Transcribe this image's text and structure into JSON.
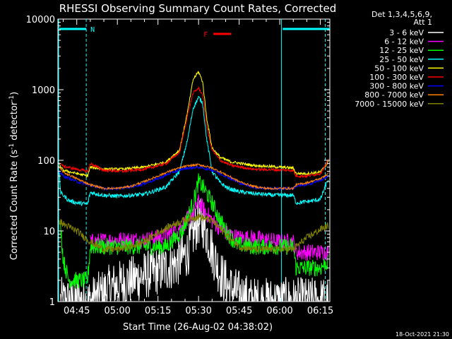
{
  "chart_data": {
    "type": "line",
    "title": "RHESSI Observing Summary Count Rates, Corrected",
    "xlabel": "Start Time (26-Aug-02 04:38:02)",
    "ylabel_main": "Corrected Count Rate (s",
    "ylabel_sup1": "-1",
    "ylabel_mid": " detector",
    "ylabel_sup2": "-1",
    "ylabel_end": ")",
    "y_scale": "log",
    "ylim": [
      1,
      10000
    ],
    "xlim_minutes": [
      38.03,
      138.5
    ],
    "xticks": [
      {
        "label": "04:45",
        "min": 45
      },
      {
        "label": "05:00",
        "min": 60
      },
      {
        "label": "05:15",
        "min": 75
      },
      {
        "label": "05:30",
        "min": 90
      },
      {
        "label": "05:45",
        "min": 105
      },
      {
        "label": "06:00",
        "min": 120
      },
      {
        "label": "06:15",
        "min": 135
      }
    ],
    "yticks": [
      {
        "label": "1",
        "v": 1
      },
      {
        "label": "10",
        "v": 10
      },
      {
        "label": "100",
        "v": 100
      },
      {
        "label": "1000",
        "v": 1000
      },
      {
        "label": "10000",
        "v": 10000
      }
    ],
    "legend_header": [
      "Det 1,3,4,5,6,9,",
      "Att 1"
    ],
    "legend_position": "top-right",
    "series": [
      {
        "name": "3 - 6 keV",
        "color": "#ffffff",
        "points": [
          [
            39,
            1
          ],
          [
            50,
            1
          ],
          [
            58,
            1.6
          ],
          [
            65,
            2
          ],
          [
            72,
            2.5
          ],
          [
            78,
            3
          ],
          [
            82,
            3.5
          ],
          [
            86,
            5
          ],
          [
            88,
            9
          ],
          [
            90,
            14
          ],
          [
            92,
            12
          ],
          [
            94,
            7
          ],
          [
            96,
            4
          ],
          [
            98,
            2.5
          ],
          [
            101,
            1.6
          ],
          [
            106,
            1.2
          ],
          [
            110,
            1
          ],
          [
            138,
            1
          ]
        ]
      },
      {
        "name": "6 - 12 keV",
        "color": "#ff00ff",
        "points": [
          [
            50,
            7
          ],
          [
            60,
            7.5
          ],
          [
            70,
            7.5
          ],
          [
            78,
            8.5
          ],
          [
            84,
            12
          ],
          [
            88,
            18
          ],
          [
            90,
            26
          ],
          [
            92,
            20
          ],
          [
            95,
            14
          ],
          [
            98,
            11
          ],
          [
            101,
            9
          ],
          [
            105,
            8
          ],
          [
            110,
            8
          ],
          [
            120,
            7
          ],
          [
            125,
            7
          ],
          [
            126,
            5
          ],
          [
            130,
            5
          ],
          [
            135,
            5
          ],
          [
            138,
            5
          ]
        ]
      },
      {
        "name": "12 - 25 keV",
        "color": "#00ff00",
        "points": [
          [
            39,
            12
          ],
          [
            40,
            4
          ],
          [
            42,
            2
          ],
          [
            49,
            2
          ],
          [
            50,
            6
          ],
          [
            56,
            6
          ],
          [
            60,
            6
          ],
          [
            70,
            6
          ],
          [
            78,
            6
          ],
          [
            84,
            10
          ],
          [
            88,
            25
          ],
          [
            90,
            50
          ],
          [
            92,
            40
          ],
          [
            95,
            25
          ],
          [
            98,
            14
          ],
          [
            101,
            9
          ],
          [
            104,
            6.5
          ],
          [
            110,
            6
          ],
          [
            125,
            6
          ],
          [
            126,
            3
          ],
          [
            135,
            3
          ],
          [
            137,
            3.5
          ],
          [
            138,
            3.5
          ]
        ]
      },
      {
        "name": "25 - 50 keV",
        "color": "#00ffff",
        "points": [
          [
            38.5,
            70
          ],
          [
            39,
            35
          ],
          [
            42,
            27
          ],
          [
            45,
            25
          ],
          [
            49,
            24
          ],
          [
            50,
            35
          ],
          [
            55,
            32
          ],
          [
            60,
            31
          ],
          [
            70,
            33
          ],
          [
            78,
            42
          ],
          [
            83,
            70
          ],
          [
            86,
            200
          ],
          [
            88,
            550
          ],
          [
            90,
            780
          ],
          [
            91.5,
            650
          ],
          [
            93,
            200
          ],
          [
            95,
            70
          ],
          [
            98,
            48
          ],
          [
            101,
            40
          ],
          [
            105,
            36
          ],
          [
            110,
            34
          ],
          [
            118,
            32
          ],
          [
            125,
            32
          ],
          [
            126,
            25
          ],
          [
            130,
            26
          ],
          [
            135,
            28
          ],
          [
            138,
            55
          ]
        ]
      },
      {
        "name": "50 - 100 keV",
        "color": "#ffff00",
        "points": [
          [
            38.5,
            85
          ],
          [
            40,
            72
          ],
          [
            45,
            65
          ],
          [
            49,
            60
          ],
          [
            50,
            80
          ],
          [
            55,
            75
          ],
          [
            62,
            75
          ],
          [
            70,
            80
          ],
          [
            78,
            95
          ],
          [
            83,
            140
          ],
          [
            86,
            500
          ],
          [
            88,
            1400
          ],
          [
            90,
            1800
          ],
          [
            91.5,
            1300
          ],
          [
            93,
            400
          ],
          [
            95,
            150
          ],
          [
            98,
            110
          ],
          [
            102,
            95
          ],
          [
            110,
            85
          ],
          [
            120,
            80
          ],
          [
            125,
            78
          ],
          [
            126,
            65
          ],
          [
            130,
            65
          ],
          [
            135,
            68
          ],
          [
            138,
            95
          ]
        ]
      },
      {
        "name": "100 - 300 keV",
        "color": "#ff0000",
        "points": [
          [
            38.5,
            95
          ],
          [
            40,
            82
          ],
          [
            45,
            75
          ],
          [
            49,
            70
          ],
          [
            50,
            90
          ],
          [
            55,
            72
          ],
          [
            62,
            70
          ],
          [
            70,
            75
          ],
          [
            78,
            90
          ],
          [
            83,
            130
          ],
          [
            86,
            450
          ],
          [
            88,
            900
          ],
          [
            90,
            1050
          ],
          [
            91.5,
            850
          ],
          [
            93,
            300
          ],
          [
            95,
            140
          ],
          [
            98,
            100
          ],
          [
            102,
            85
          ],
          [
            110,
            75
          ],
          [
            120,
            73
          ],
          [
            125,
            72
          ],
          [
            126,
            60
          ],
          [
            130,
            60
          ],
          [
            135,
            65
          ],
          [
            138,
            100
          ]
        ]
      },
      {
        "name": "300 - 800 keV",
        "color": "#0000ff",
        "points": [
          [
            38.5,
            70
          ],
          [
            40,
            60
          ],
          [
            45,
            50
          ],
          [
            50,
            44
          ],
          [
            55,
            40
          ],
          [
            60,
            40
          ],
          [
            65,
            42
          ],
          [
            70,
            47
          ],
          [
            75,
            55
          ],
          [
            80,
            67
          ],
          [
            85,
            77
          ],
          [
            90,
            80
          ],
          [
            95,
            73
          ],
          [
            100,
            60
          ],
          [
            105,
            48
          ],
          [
            110,
            42
          ],
          [
            115,
            40
          ],
          [
            120,
            40
          ],
          [
            125,
            40
          ],
          [
            126,
            43
          ],
          [
            130,
            45
          ],
          [
            135,
            52
          ],
          [
            138,
            60
          ]
        ]
      },
      {
        "name": "800 - 7000 keV",
        "color": "#ff8000",
        "points": [
          [
            38.5,
            80
          ],
          [
            40,
            68
          ],
          [
            45,
            55
          ],
          [
            50,
            45
          ],
          [
            55,
            40
          ],
          [
            60,
            40
          ],
          [
            65,
            43
          ],
          [
            70,
            50
          ],
          [
            75,
            60
          ],
          [
            80,
            72
          ],
          [
            85,
            82
          ],
          [
            90,
            87
          ],
          [
            95,
            78
          ],
          [
            100,
            63
          ],
          [
            105,
            50
          ],
          [
            110,
            43
          ],
          [
            115,
            40
          ],
          [
            120,
            40
          ],
          [
            125,
            40
          ],
          [
            126,
            45
          ],
          [
            130,
            48
          ],
          [
            135,
            55
          ],
          [
            138,
            65
          ]
        ]
      },
      {
        "name": "7000 - 15000 keV",
        "color": "#808000",
        "points": [
          [
            38.5,
            14
          ],
          [
            40,
            12.5
          ],
          [
            45,
            10
          ],
          [
            50,
            7
          ],
          [
            55,
            5.5
          ],
          [
            60,
            5.5
          ],
          [
            65,
            6
          ],
          [
            70,
            7
          ],
          [
            75,
            9.5
          ],
          [
            80,
            12
          ],
          [
            85,
            14.5
          ],
          [
            90,
            16
          ],
          [
            95,
            14
          ],
          [
            100,
            9
          ],
          [
            105,
            6
          ],
          [
            110,
            5.5
          ],
          [
            115,
            5.5
          ],
          [
            120,
            5.5
          ],
          [
            125,
            5.5
          ],
          [
            126,
            6
          ],
          [
            130,
            8
          ],
          [
            135,
            10.5
          ],
          [
            138,
            12
          ]
        ]
      }
    ],
    "segments": {
      "night_label": "N",
      "flare_label": "F",
      "night_color": "#00ffff",
      "flare_color": "#ff0000",
      "night_bars": [
        [
          38.03,
          48.5
        ],
        [
          120.6,
          138.5
        ]
      ],
      "night_dashes": [
        48.5,
        136.8
      ],
      "night_solid": 120.6,
      "flare_bar": [
        95.5,
        102
      ]
    }
  },
  "footer": {
    "timestamp": "18-Oct-2021 21:30"
  }
}
